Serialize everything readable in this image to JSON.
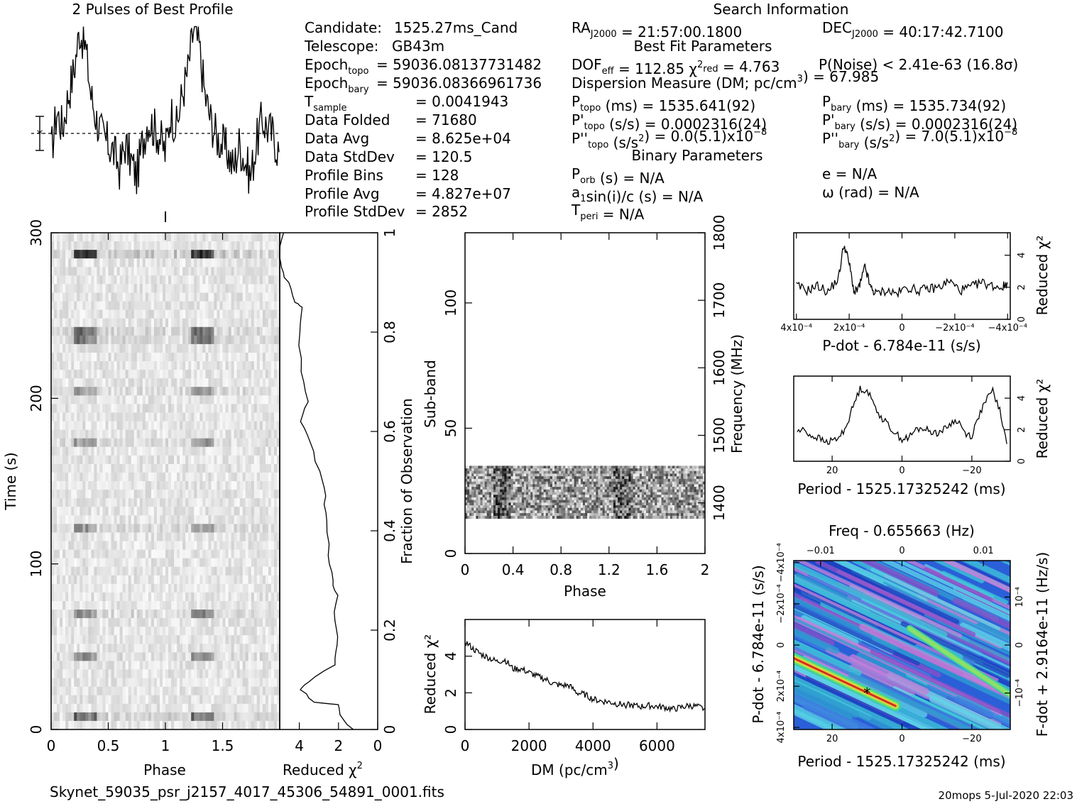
{
  "header": {
    "profile_title": "2 Pulses of Best Profile",
    "search_title": "Search Information",
    "best_fit_title": "Best Fit Parameters",
    "binary_title": "Binary Parameters"
  },
  "candidate_info": [
    {
      "label": "Candidate:",
      "value": "1525.27ms_Cand"
    },
    {
      "label": "Telescope:",
      "value": "GB43m"
    },
    {
      "label": "Epoch_topo",
      "value": "= 59036.08137731482"
    },
    {
      "label": "Epoch_bary",
      "value": "= 59036.08366961736"
    },
    {
      "label": "T_sample",
      "value": "=  0.0041943"
    },
    {
      "label": "Data Folded",
      "value": "=  71680"
    },
    {
      "label": "Data Avg",
      "value": "=  8.625e+04"
    },
    {
      "label": "Data StdDev",
      "value": "=  120.5"
    },
    {
      "label": "Profile Bins",
      "value": "=  128"
    },
    {
      "label": "Profile Avg",
      "value": "=  4.827e+07"
    },
    {
      "label": "Profile StdDev",
      "value": "=  2852"
    }
  ],
  "search_info": {
    "ra": "RA_J2000 = 21:57:00.1800",
    "dec": "DEC_J2000 = 40:17:42.7100",
    "dof": "DOF_eff = 112.85  χ²_red = 4.763",
    "pnoise": "P(Noise) < 2.41e-63   (16.8σ)",
    "dm": "Dispersion Measure (DM; pc/cm³) = 67.985",
    "p_topo": "P_topo (ms) =  1535.641(92)",
    "p_bary": "P_bary (ms) =  1535.734(92)",
    "pd_topo": "P'_topo (s/s) =  0.0002316(24)",
    "pd_bary": "P'_bary (s/s) =  0.0002316(24)",
    "pdd_topo": "P''_topo (s/s²) = 0.0(5.1)x10⁻⁸",
    "pdd_bary": "P''_bary (s/s²) =  7.0(5.1)x10⁻⁸",
    "porb": "P_orb (s) = N/A",
    "e": "e = N/A",
    "a1": "a₁sin(i)/c (s) = N/A",
    "omega": "ω (rad) = N/A",
    "tperi": "T_peri = N/A"
  },
  "footer": {
    "filename": "Skynet_59035_psr_j2157_4017_45306_54891_0001.fits",
    "stamp": "20mops   5-Jul-2020 22:03"
  },
  "colors": {
    "ink": "#000000",
    "background": "#ffffff"
  },
  "chart_data": [
    {
      "id": "profile",
      "type": "line",
      "title": "2 Pulses of Best Profile",
      "x": [
        0,
        0.05,
        0.1,
        0.15,
        0.2,
        0.25,
        0.3,
        0.35,
        0.4,
        0.45,
        0.5,
        0.55,
        0.6,
        0.65,
        0.7,
        0.75,
        0.8,
        0.85,
        0.9,
        0.95,
        1.0,
        1.05,
        1.1,
        1.15,
        1.2,
        1.25,
        1.3,
        1.35,
        1.4,
        1.45,
        1.5,
        1.55,
        1.6,
        1.65,
        1.7,
        1.75,
        1.8,
        1.85,
        1.9,
        1.95,
        2.0
      ],
      "y": [
        0.25,
        0.5,
        0.4,
        0.6,
        0.75,
        1.0,
        0.9,
        0.6,
        0.45,
        0.35,
        0.3,
        0.25,
        0.15,
        0.3,
        0.2,
        0.1,
        0.3,
        0.45,
        0.4,
        0.35,
        0.25,
        0.5,
        0.4,
        0.6,
        0.75,
        1.0,
        0.9,
        0.6,
        0.45,
        0.35,
        0.3,
        0.25,
        0.15,
        0.3,
        0.2,
        0.1,
        0.3,
        0.45,
        0.4,
        0.35,
        0.25
      ],
      "xlim": [
        0,
        2
      ],
      "ylim": [
        0,
        1
      ]
    },
    {
      "id": "time_phase",
      "type": "heatmap",
      "xlabel": "Phase",
      "ylabel": "Time (s)",
      "x_ticks": [
        "0",
        "0.5",
        "1",
        "1.5"
      ],
      "y_ticks": [
        "0",
        "100",
        "200",
        "300"
      ],
      "xlim": [
        0,
        2
      ],
      "ylim": [
        0,
        300
      ]
    },
    {
      "id": "time_chi2",
      "type": "line",
      "xlabel": "Reduced χ²",
      "y2label": "Fraction of Observation",
      "x_ticks": [
        "4",
        "2",
        "0"
      ],
      "y2_ticks": [
        "0",
        "0.2",
        "0.4",
        "0.6",
        "0.8",
        "1"
      ],
      "xlim": [
        5,
        0
      ],
      "ylim": [
        0,
        1
      ],
      "points": [
        [
          1.3,
          0.0
        ],
        [
          1.9,
          0.03
        ],
        [
          2.0,
          0.05
        ],
        [
          3.3,
          0.055
        ],
        [
          3.9,
          0.08
        ],
        [
          3.6,
          0.095
        ],
        [
          2.2,
          0.13
        ],
        [
          2.0,
          0.17
        ],
        [
          2.2,
          0.22
        ],
        [
          2.1,
          0.27
        ],
        [
          2.3,
          0.3
        ],
        [
          2.5,
          0.35
        ],
        [
          2.6,
          0.42
        ],
        [
          2.7,
          0.47
        ],
        [
          3.0,
          0.52
        ],
        [
          3.4,
          0.58
        ],
        [
          3.9,
          0.62
        ],
        [
          3.6,
          0.66
        ],
        [
          3.9,
          0.72
        ],
        [
          4.0,
          0.8
        ],
        [
          3.8,
          0.85
        ],
        [
          4.2,
          0.86
        ],
        [
          4.6,
          0.9
        ],
        [
          4.9,
          0.93
        ],
        [
          5.0,
          0.96
        ],
        [
          4.8,
          1.0
        ]
      ]
    },
    {
      "id": "subband_phase",
      "type": "heatmap",
      "xlabel": "Phase",
      "ylabel": "Sub-band",
      "y2label": "Frequency (MHz)",
      "x_ticks": [
        "0",
        "0.4",
        "0.8",
        "1.2",
        "1.6",
        "2"
      ],
      "y_ticks": [
        "0",
        "50",
        "100"
      ],
      "y2_ticks": [
        "1400",
        "1500",
        "1600",
        "1700",
        "1800"
      ],
      "xlim": [
        0,
        2
      ],
      "ylim": [
        0,
        128
      ],
      "y2lim": [
        1325,
        1800
      ],
      "data_band": [
        14,
        35
      ]
    },
    {
      "id": "dm_chi2",
      "type": "line",
      "xlabel": "DM (pc/cm³)",
      "ylabel": "Reduced χ²",
      "x_ticks": [
        "0",
        "2000",
        "4000",
        "6000"
      ],
      "y_ticks": [
        "0",
        "2",
        "4"
      ],
      "xlim": [
        0,
        7500
      ],
      "ylim": [
        0,
        6
      ],
      "x": [
        0,
        250,
        500,
        750,
        1000,
        1250,
        1500,
        1750,
        2000,
        2250,
        2500,
        2750,
        3000,
        3250,
        3500,
        3750,
        4000,
        4250,
        4500,
        4750,
        5000,
        5250,
        5500,
        5750,
        6000,
        6250,
        6500,
        6750,
        7000,
        7250,
        7500
      ],
      "y": [
        4.8,
        4.4,
        4.1,
        3.9,
        3.7,
        3.8,
        3.3,
        3.3,
        3.1,
        2.9,
        2.75,
        2.5,
        2.4,
        2.4,
        2.0,
        1.9,
        1.65,
        1.55,
        1.5,
        1.4,
        1.35,
        1.3,
        1.25,
        1.3,
        1.25,
        1.2,
        1.1,
        1.2,
        1.3,
        1.25,
        1.1
      ]
    },
    {
      "id": "pdot_chi2",
      "type": "line",
      "xlabel": "P-dot - 6.784e-11 (s/s)",
      "y2label": "Reduced χ²",
      "x_ticks": [
        "4x10⁻⁴",
        "2x10⁻⁴",
        "0",
        "−2x10⁻⁴",
        "−4x10⁻⁴"
      ],
      "y2_ticks": [
        "0",
        "2",
        "4"
      ],
      "xlim": [
        0.00041,
        -0.00041
      ],
      "ylim": [
        0,
        5.4
      ],
      "x": [
        0.0004,
        0.00036,
        0.00032,
        0.00028,
        0.00024,
        0.00022,
        0.0002,
        0.00018,
        0.00016,
        0.00014,
        0.00012,
        0.0001,
        6e-05,
        2e-05,
        -2e-05,
        -6e-05,
        -0.0001,
        -0.00014,
        -0.00018,
        -0.00022,
        -0.00026,
        -0.0003,
        -0.00034,
        -0.00038,
        -0.0004
      ],
      "y": [
        2.1,
        1.8,
        2.1,
        1.7,
        2.6,
        4.7,
        3.5,
        1.6,
        2.1,
        3.3,
        2.0,
        1.6,
        1.8,
        1.6,
        2.0,
        1.8,
        1.9,
        2.0,
        2.4,
        1.8,
        2.0,
        2.3,
        2.1,
        2.0,
        2.3
      ]
    },
    {
      "id": "period_chi2",
      "type": "line",
      "xlabel": "Period - 1525.17325242 (ms)",
      "y2label": "Reduced χ²",
      "x_ticks": [
        "20",
        "0",
        "−20"
      ],
      "y2_ticks": [
        "0",
        "2",
        "4"
      ],
      "xlim": [
        31,
        -31
      ],
      "ylim": [
        0,
        5.4
      ],
      "x": [
        30,
        28,
        26,
        24,
        22,
        20,
        18,
        16,
        14,
        12,
        10,
        8,
        6,
        4,
        2,
        0,
        -2,
        -4,
        -6,
        -8,
        -10,
        -12,
        -14,
        -16,
        -18,
        -20,
        -22,
        -24,
        -26,
        -28,
        -30
      ],
      "y": [
        1.9,
        2.0,
        1.6,
        1.5,
        1.2,
        1.3,
        1.5,
        2.2,
        3.5,
        4.6,
        4.5,
        3.6,
        2.8,
        2.3,
        1.8,
        1.4,
        1.5,
        2.0,
        2.1,
        1.9,
        1.8,
        2.0,
        2.4,
        2.6,
        1.8,
        1.6,
        2.9,
        3.8,
        4.5,
        3.2,
        1.1
      ]
    },
    {
      "id": "ppdot_plane",
      "type": "heatmap",
      "xlabel": "Period - 1525.17325242 (ms)",
      "ylabel": "P-dot - 6.784e-11 (s/s)",
      "x2label": "Freq - 0.655663 (Hz)",
      "y2label": "F-dot + 2.9164e-11 (Hz/s)",
      "x_ticks": [
        "20",
        "0",
        "−20"
      ],
      "x2_ticks": [
        "−0.01",
        "0",
        "0.01"
      ],
      "y_ticks": [
        "4x10⁻⁴",
        "2x10⁻⁴",
        "0",
        "−2x10⁻⁴",
        "−4x10⁻⁴"
      ],
      "y2_ticks": [
        "−10⁻⁴",
        "0",
        "10⁻⁴"
      ],
      "xlim": [
        31,
        -31
      ],
      "ylim": [
        0.00041,
        -0.00041
      ],
      "best": {
        "period": 10,
        "pdot": 0.00023
      }
    }
  ]
}
